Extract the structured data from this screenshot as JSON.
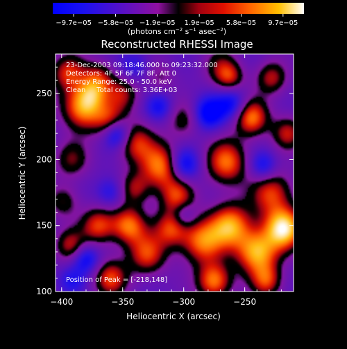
{
  "chart_data": {
    "type": "heatmap",
    "title": "Reconstructed RHESSI Image",
    "xlabel": "Heliocentric X (arcsec)",
    "ylabel": "Heliocentric Y (arcsec)",
    "xlim": [
      -405,
      -210
    ],
    "ylim": [
      100,
      280
    ],
    "x_ticks": [
      -400,
      -350,
      -300,
      -250
    ],
    "x_tick_labels": [
      "−400",
      "−350",
      "−300",
      "−250"
    ],
    "y_ticks": [
      100,
      150,
      200,
      250
    ],
    "y_tick_labels": [
      "100",
      "150",
      "200",
      "250"
    ],
    "annotations": [
      "23-Dec-2003 09:18:46.000 to 09:23:32.000",
      "Detectors: 4F 5F 6F 7F 8F, Att 0",
      "Energy Range: 25.0 - 50.0 keV",
      "Clean     Total counts: 3.36E+03"
    ],
    "peak_label": "Position of Peak = [-218,148]",
    "colorbar": {
      "range": [
        -9.7e-05,
        9.7e-05
      ],
      "tick_labels": [
        "−9.7e−05",
        "−5.8e−05",
        "−1.9e−05",
        "1.9e−05",
        "5.8e−05",
        "9.7e−05"
      ],
      "units_label_main": "(photons cm",
      "units_sup1": "−2",
      "units_mid": " s",
      "units_sup2": "−1",
      "units_mid2": " asec",
      "units_sup3": "−2",
      "units_end": ")"
    },
    "blobs": [
      {
        "x": -395,
        "y": 266,
        "v": 0.55,
        "s": 10
      },
      {
        "x": -370,
        "y": 262,
        "v": 0.45,
        "s": 9
      },
      {
        "x": -382,
        "y": 240,
        "v": 0.85,
        "s": 12
      },
      {
        "x": -350,
        "y": 250,
        "v": 0.45,
        "s": 10
      },
      {
        "x": -360,
        "y": 228,
        "v": 0.55,
        "s": 9
      },
      {
        "x": -340,
        "y": 213,
        "v": 0.55,
        "s": 11
      },
      {
        "x": -320,
        "y": 262,
        "v": 0.25,
        "s": 9
      },
      {
        "x": -318,
        "y": 195,
        "v": 0.75,
        "s": 12
      },
      {
        "x": -300,
        "y": 230,
        "v": 0.35,
        "s": 10
      },
      {
        "x": -305,
        "y": 172,
        "v": 0.55,
        "s": 10
      },
      {
        "x": -270,
        "y": 270,
        "v": 0.35,
        "s": 10
      },
      {
        "x": -262,
        "y": 262,
        "v": 0.45,
        "s": 8
      },
      {
        "x": -265,
        "y": 198,
        "v": 0.7,
        "s": 12
      },
      {
        "x": -245,
        "y": 232,
        "v": 0.75,
        "s": 10
      },
      {
        "x": -228,
        "y": 262,
        "v": 0.5,
        "s": 9
      },
      {
        "x": -228,
        "y": 175,
        "v": 0.6,
        "s": 12
      },
      {
        "x": -215,
        "y": 220,
        "v": 0.5,
        "s": 9
      },
      {
        "x": -218,
        "y": 148,
        "v": 1.0,
        "s": 11
      },
      {
        "x": -240,
        "y": 130,
        "v": 0.85,
        "s": 12
      },
      {
        "x": -262,
        "y": 150,
        "v": 0.8,
        "s": 12
      },
      {
        "x": -285,
        "y": 138,
        "v": 0.7,
        "s": 12
      },
      {
        "x": -275,
        "y": 108,
        "v": 0.75,
        "s": 10
      },
      {
        "x": -310,
        "y": 148,
        "v": 0.6,
        "s": 10
      },
      {
        "x": -330,
        "y": 128,
        "v": 0.6,
        "s": 11
      },
      {
        "x": -345,
        "y": 150,
        "v": 0.7,
        "s": 10
      },
      {
        "x": -370,
        "y": 150,
        "v": 0.6,
        "s": 10
      },
      {
        "x": -360,
        "y": 110,
        "v": 0.6,
        "s": 10
      },
      {
        "x": -393,
        "y": 135,
        "v": 0.5,
        "s": 9
      },
      {
        "x": -398,
        "y": 168,
        "v": 0.35,
        "s": 9
      },
      {
        "x": -392,
        "y": 200,
        "v": 0.4,
        "s": 10
      },
      {
        "x": -340,
        "y": 178,
        "v": 0.45,
        "s": 9
      },
      {
        "x": -232,
        "y": 108,
        "v": 0.55,
        "s": 9
      },
      {
        "x": -375,
        "y": 250,
        "v": 0.3,
        "s": 8
      },
      {
        "x": -355,
        "y": 220,
        "v": -0.7,
        "s": 8
      },
      {
        "x": -300,
        "y": 196,
        "v": -0.6,
        "s": 9
      },
      {
        "x": -280,
        "y": 235,
        "v": -0.6,
        "s": 9
      },
      {
        "x": -260,
        "y": 242,
        "v": -0.5,
        "s": 9
      },
      {
        "x": -320,
        "y": 240,
        "v": -0.4,
        "s": 8
      },
      {
        "x": -380,
        "y": 125,
        "v": -0.5,
        "s": 8
      },
      {
        "x": -360,
        "y": 175,
        "v": -0.35,
        "s": 8
      },
      {
        "x": -300,
        "y": 158,
        "v": -0.35,
        "s": 7
      },
      {
        "x": -235,
        "y": 195,
        "v": -0.45,
        "s": 8
      },
      {
        "x": -340,
        "y": 270,
        "v": -0.3,
        "s": 9
      },
      {
        "x": -392,
        "y": 108,
        "v": -0.3,
        "s": 8
      }
    ]
  }
}
